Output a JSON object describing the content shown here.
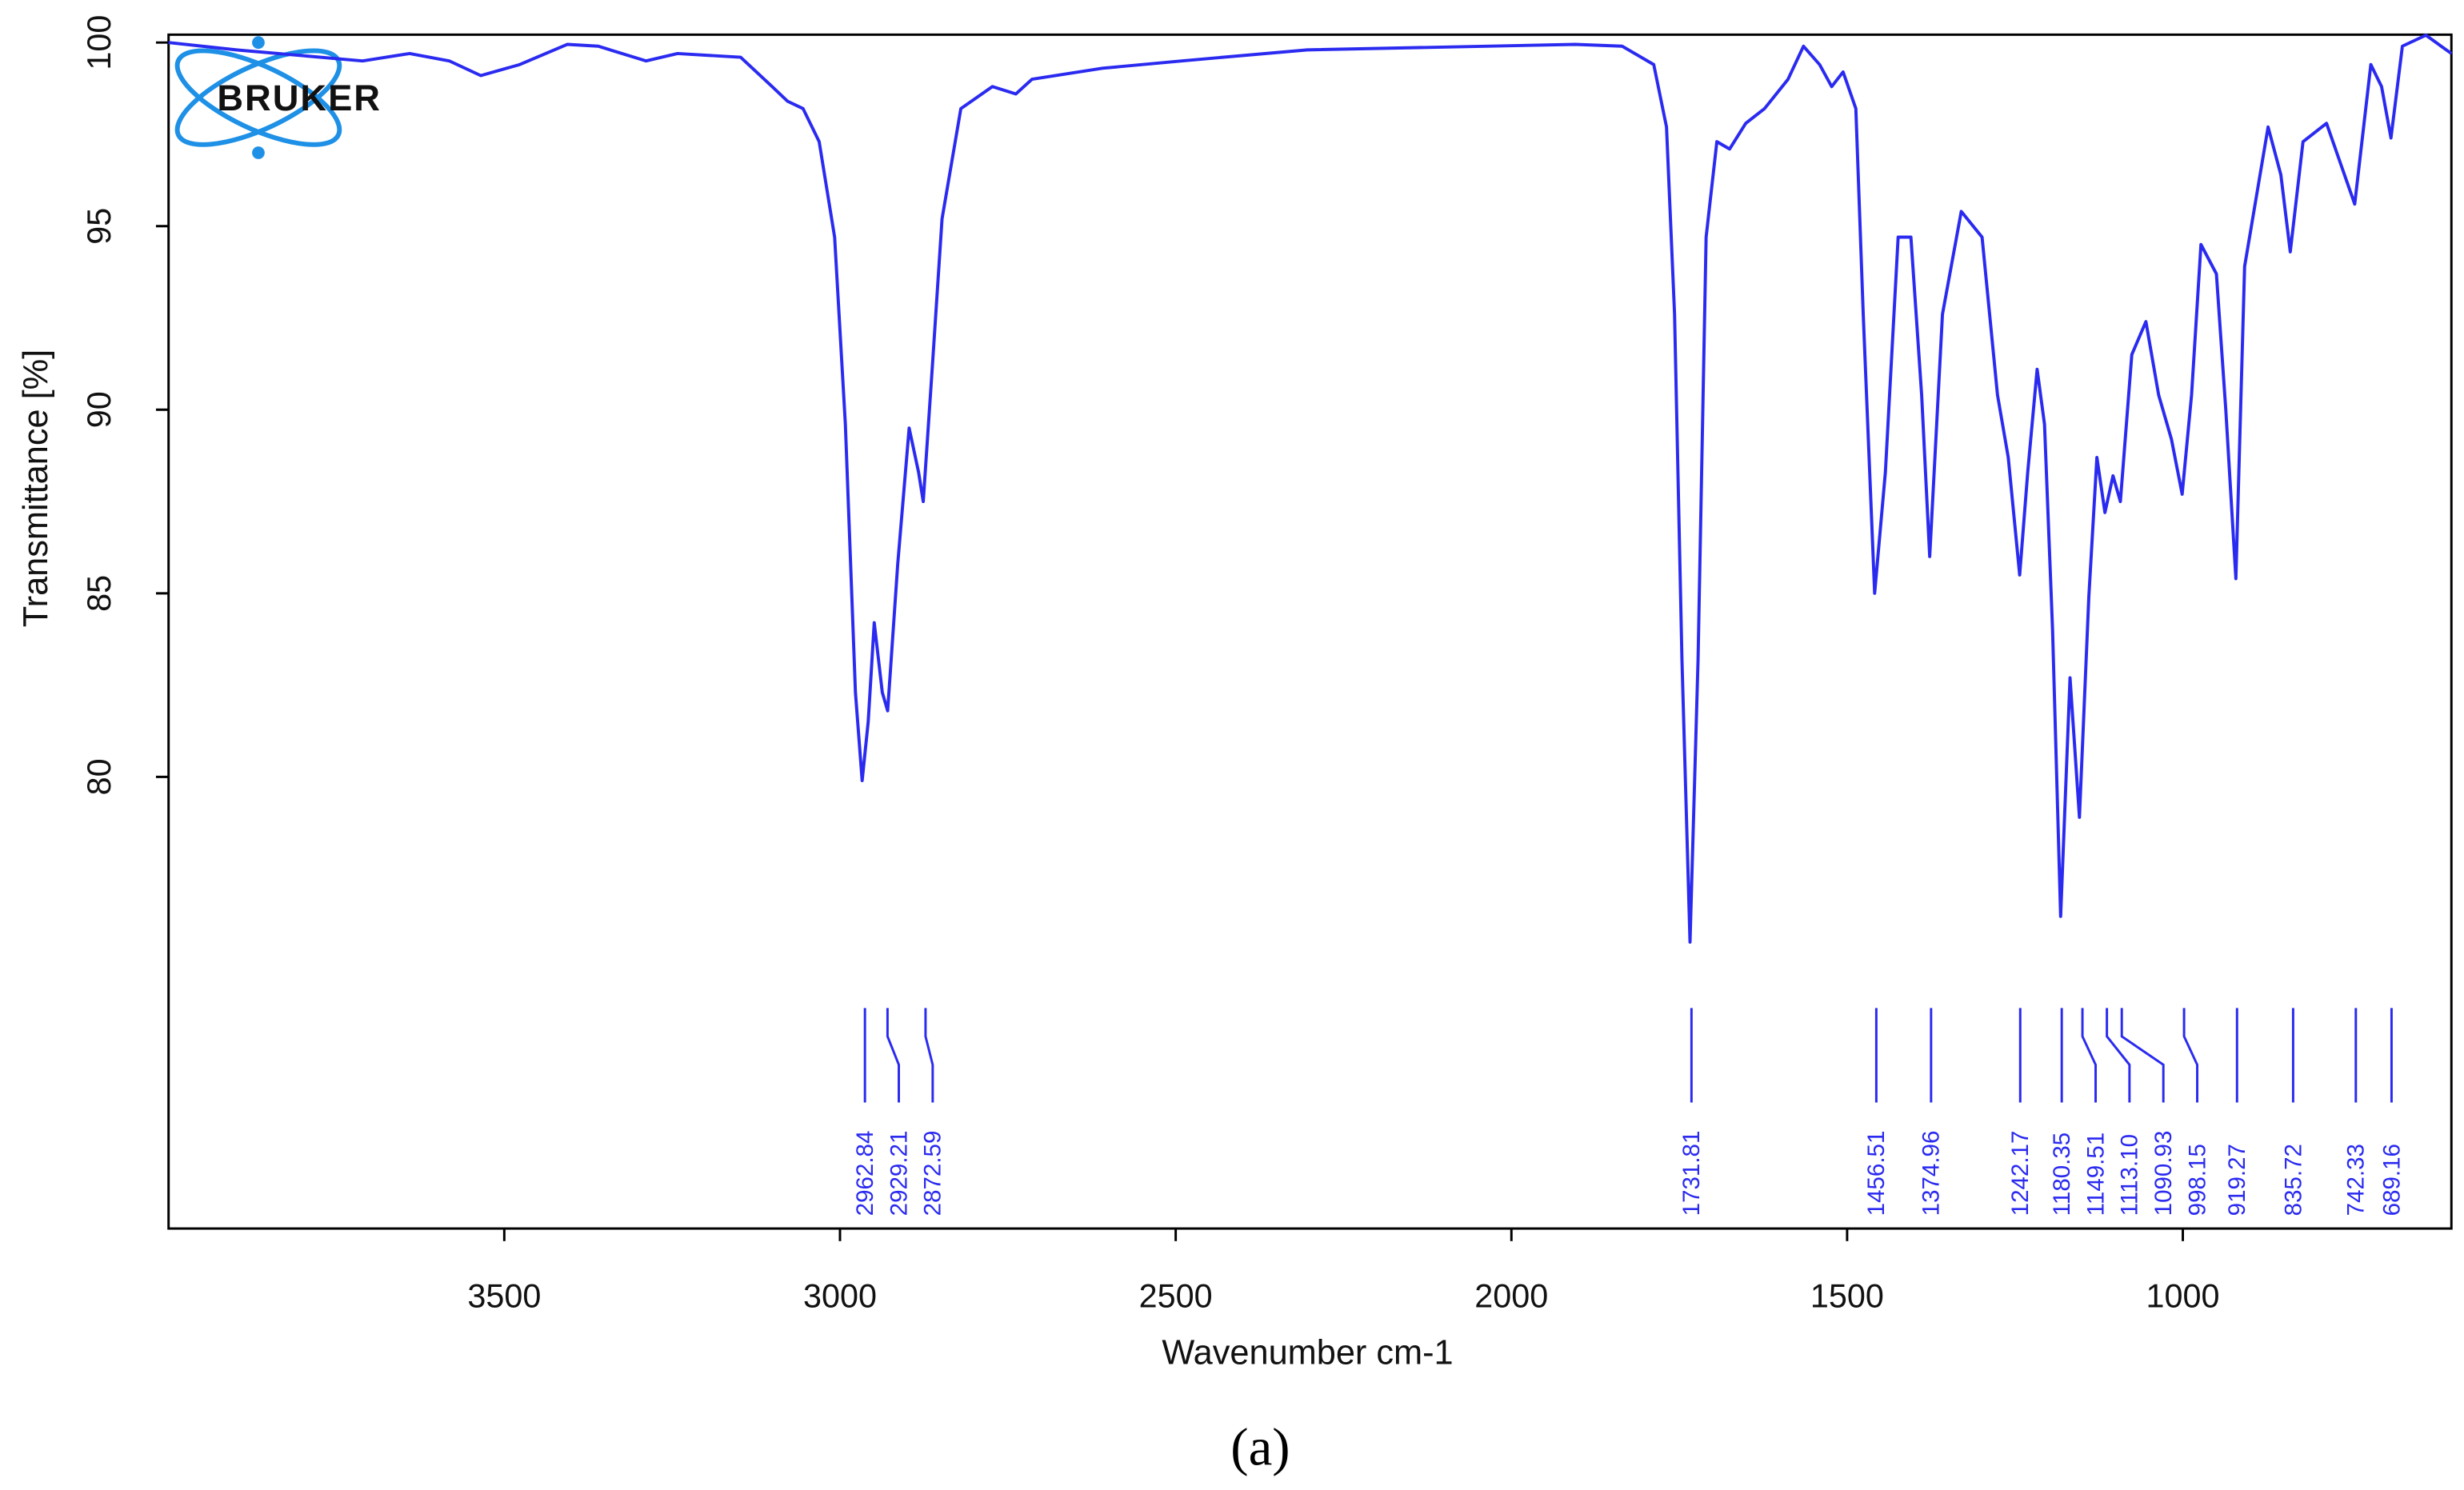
{
  "chart_data": {
    "type": "line",
    "logo": "BRUKER",
    "xlabel": "Wavenumber cm-1",
    "ylabel": "Transmittance [%]",
    "caption": "(a)",
    "xlim": [
      4000,
      600
    ],
    "xticks": [
      3500,
      3000,
      2500,
      2000,
      1500,
      1000
    ],
    "ylim": [
      67.7,
      100
    ],
    "yticks": [
      80,
      85,
      90,
      95,
      100
    ],
    "grid": false,
    "x": [
      4000,
      3899,
      3711,
      3641,
      3582,
      3535,
      3477,
      3406,
      3360,
      3289,
      3242,
      3148,
      3101,
      3078,
      3055,
      3031,
      3008,
      2992,
      2977,
      2967,
      2958,
      2949,
      2937,
      2929,
      2914,
      2897,
      2883,
      2876,
      2862,
      2848,
      2820,
      2773,
      2738,
      2714,
      2609,
      2491,
      2304,
      1905,
      1835,
      1788,
      1769,
      1757,
      1746,
      1734,
      1722,
      1710,
      1694,
      1675,
      1651,
      1623,
      1588,
      1565,
      1541,
      1523,
      1506,
      1487,
      1476,
      1459,
      1443,
      1424,
      1405,
      1389,
      1377,
      1358,
      1330,
      1299,
      1276,
      1260,
      1243,
      1231,
      1217,
      1206,
      1194,
      1182,
      1168,
      1154,
      1140,
      1128,
      1116,
      1104,
      1093,
      1076,
      1055,
      1036,
      1017,
      1001,
      987,
      973,
      950,
      936,
      921,
      908,
      873,
      854,
      840,
      821,
      786,
      744,
      720,
      704,
      690,
      673,
      638,
      600
    ],
    "series": [
      {
        "color": "#2a2af0",
        "values": [
          100,
          99.8,
          99.5,
          99.7,
          99.5,
          99.1,
          99.4,
          99.95,
          99.9,
          99.5,
          99.7,
          99.6,
          98.8,
          98.4,
          98.2,
          97.3,
          94.7,
          89.6,
          82.3,
          79.9,
          81.5,
          84.2,
          82.3,
          81.8,
          85.8,
          89.5,
          88.3,
          87.5,
          91.3,
          95.2,
          98.2,
          98.8,
          98.6,
          99.0,
          99.3,
          99.5,
          99.8,
          99.95,
          99.9,
          99.4,
          97.7,
          92.6,
          83.2,
          75.5,
          83.2,
          94.7,
          97.3,
          97.1,
          97.8,
          98.2,
          99.0,
          99.9,
          99.4,
          98.8,
          99.2,
          98.2,
          92.6,
          85.0,
          88.3,
          94.7,
          94.7,
          90.4,
          86.0,
          92.6,
          95.4,
          94.7,
          90.4,
          88.7,
          85.5,
          88.3,
          91.1,
          89.6,
          84.0,
          76.2,
          82.7,
          78.9,
          84.9,
          88.7,
          87.2,
          88.2,
          87.5,
          91.5,
          92.4,
          90.4,
          89.2,
          87.7,
          90.4,
          94.5,
          93.7,
          90.0,
          85.4,
          93.9,
          97.7,
          96.4,
          94.3,
          97.3,
          97.8,
          95.6,
          99.4,
          98.8,
          97.4,
          99.9,
          100.2,
          99.7
        ]
      }
    ],
    "peaks": [
      2962.84,
      2929.21,
      2872.59,
      1731.81,
      1456.51,
      1374.96,
      1242.17,
      1180.35,
      1149.51,
      1113.1,
      1090.93,
      998.15,
      919.27,
      835.72,
      742.33,
      689.16
    ],
    "peak_labels": [
      "2962.84",
      "2929.21",
      "2872.59",
      "1731.81",
      "1456.51",
      "1374.96",
      "1242.17",
      "1180.35",
      "1149.51",
      "1113.10",
      "1090.93",
      "998.15",
      "919.27",
      "835.72",
      "742.33",
      "689.16"
    ]
  }
}
